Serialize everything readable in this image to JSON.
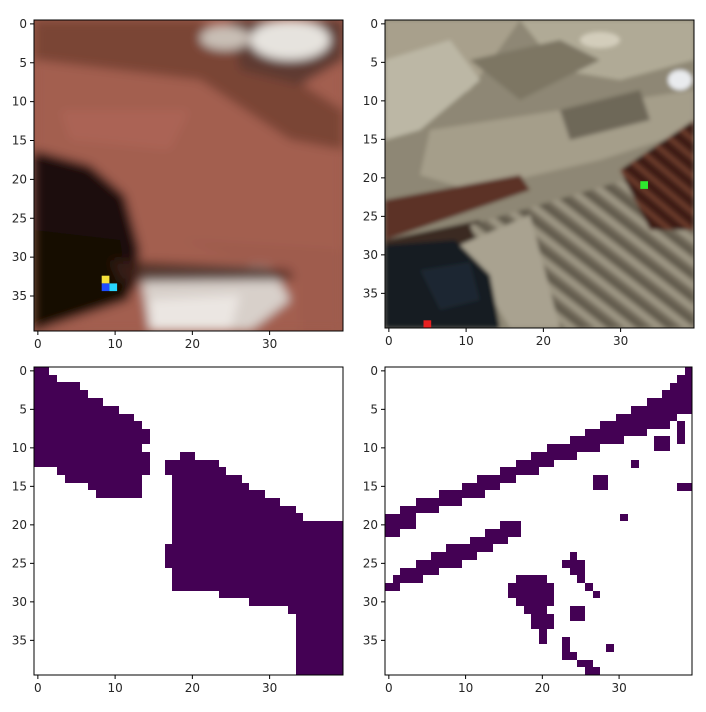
{
  "chart_data": [
    {
      "type": "heatmap",
      "panel": "top-left",
      "content": "RGB image patch (skin tone with dark region at left), four colored marker pixels",
      "grid": "40x40",
      "xlim": [
        0,
        39
      ],
      "ylim": [
        39,
        0
      ],
      "x_ticks": [
        "0",
        "10",
        "20",
        "30"
      ],
      "y_ticks": [
        "0",
        "5",
        "10",
        "15",
        "20",
        "25",
        "30",
        "35"
      ],
      "markers": [
        {
          "x": 9,
          "y": 33,
          "color": "#f5e13a"
        },
        {
          "x": 9,
          "y": 34,
          "color": "#1e4cff"
        },
        {
          "x": 10,
          "y": 34,
          "color": "#28d6ff"
        }
      ],
      "colors": {
        "skin": "#9e5c4d",
        "dark": "#1a0c09",
        "highlight": "#e8e3dc"
      }
    },
    {
      "type": "heatmap",
      "panel": "top-right",
      "content": "RGB aerial image patch (gray/beige diagonal structures, dark region bottom-left), two colored marker pixels",
      "grid": "40x40",
      "xlim": [
        0,
        39
      ],
      "ylim": [
        39,
        0
      ],
      "x_ticks": [
        "0",
        "10",
        "20",
        "30"
      ],
      "y_ticks": [
        "0",
        "5",
        "10",
        "15",
        "20",
        "25",
        "30",
        "35"
      ],
      "markers": [
        {
          "x": 33,
          "y": 21,
          "color": "#2ee82e"
        },
        {
          "x": 5,
          "y": 39,
          "color": "#e82020"
        }
      ],
      "colors": {
        "ground": "#8c8574",
        "dark": "#141a20",
        "brown": "#4a2a20"
      }
    },
    {
      "type": "heatmap",
      "panel": "bottom-left",
      "content": "binary mask (purple foreground on white)",
      "grid": "40x40",
      "xlim": [
        0,
        39
      ],
      "ylim": [
        39,
        0
      ],
      "x_ticks": [
        "0",
        "10",
        "20",
        "30"
      ],
      "y_ticks": [
        "0",
        "5",
        "10",
        "15",
        "20",
        "25",
        "30",
        "35"
      ],
      "colors": {
        "foreground": "#440154",
        "background": "#ffffff"
      }
    },
    {
      "type": "heatmap",
      "panel": "bottom-right",
      "content": "binary mask (purple foreground on white)",
      "grid": "40x40",
      "xlim": [
        0,
        39
      ],
      "ylim": [
        39,
        0
      ],
      "x_ticks": [
        "0",
        "10",
        "20",
        "30"
      ],
      "y_ticks": [
        "0",
        "5",
        "10",
        "15",
        "20",
        "25",
        "30",
        "35"
      ],
      "colors": {
        "foreground": "#440154",
        "background": "#ffffff"
      }
    }
  ]
}
